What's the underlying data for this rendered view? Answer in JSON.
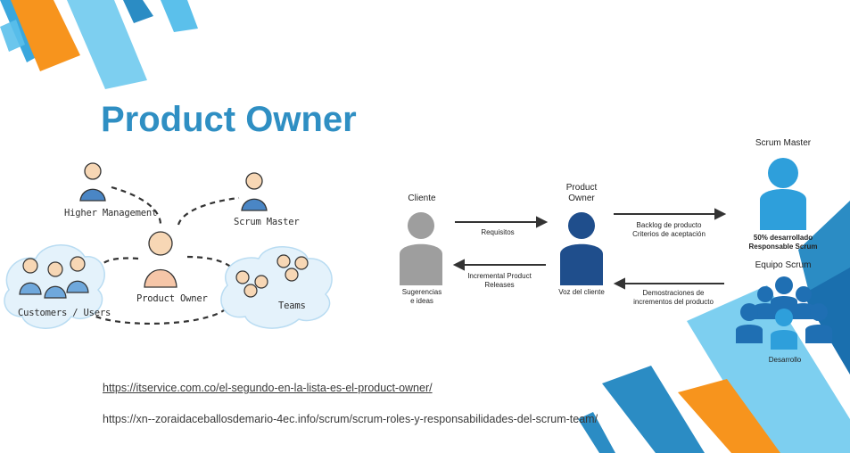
{
  "slide": {
    "title": "Product Owner",
    "links": [
      "https://itservice.com.co/el-segundo-en-la-lista-es-el-product-owner/",
      "https://xn--zoraidaceballosdemario-4ec.info/scrum/scrum-roles-y-responsabilidades-del-scrum-team/"
    ]
  },
  "left_diagram": {
    "higher_management": "Higher Management",
    "scrum_master": "Scrum Master",
    "product_owner": "Product Owner",
    "customers": "Customers / Users",
    "teams": "Teams"
  },
  "right_diagram": {
    "cliente": "Cliente",
    "cliente_sub": [
      "Sugerencias",
      "e ideas"
    ],
    "product_owner": [
      "Product",
      "Owner"
    ],
    "voz": "Voz del cliente",
    "requisitos": "Requisitos",
    "incremental": [
      "Incremental Product",
      "Releases"
    ],
    "backlog": [
      "Backlog de producto",
      "Criterios de aceptación"
    ],
    "demostraciones": [
      "Demostraciones de",
      "incrementos del producto"
    ],
    "scrum_master": "Scrum Master",
    "sm_sub": [
      "50% desarrollado",
      "Responsable Scrum"
    ],
    "equipo": "Equipo Scrum",
    "desarrollo": "Desarrollo"
  },
  "colors": {
    "title": "#2f8fc3",
    "orange": "#f7941d",
    "light_blue": "#5bc0eb",
    "mid_blue": "#2b8cc4",
    "gray_person": "#9e9e9e",
    "navy_person": "#1f4e8c"
  }
}
